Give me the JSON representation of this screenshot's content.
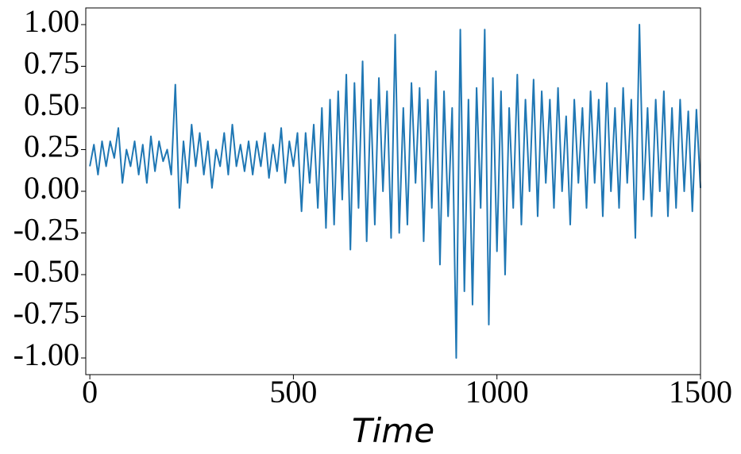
{
  "chart_data": {
    "type": "line",
    "x_label": "Time",
    "x": [
      0,
      10,
      20,
      30,
      40,
      50,
      60,
      70,
      80,
      90,
      100,
      110,
      120,
      130,
      140,
      150,
      160,
      170,
      180,
      190,
      200,
      210,
      220,
      230,
      240,
      250,
      260,
      270,
      280,
      290,
      300,
      310,
      320,
      330,
      340,
      350,
      360,
      370,
      380,
      390,
      400,
      410,
      420,
      430,
      440,
      450,
      460,
      470,
      480,
      490,
      500,
      510,
      520,
      530,
      540,
      550,
      560,
      570,
      580,
      590,
      600,
      610,
      620,
      630,
      640,
      650,
      660,
      670,
      680,
      690,
      700,
      710,
      720,
      730,
      740,
      750,
      760,
      770,
      780,
      790,
      800,
      810,
      820,
      830,
      840,
      850,
      860,
      870,
      880,
      890,
      900,
      910,
      920,
      930,
      940,
      950,
      960,
      970,
      980,
      990,
      1000,
      1010,
      1020,
      1030,
      1040,
      1050,
      1060,
      1070,
      1080,
      1090,
      1100,
      1110,
      1120,
      1130,
      1140,
      1150,
      1160,
      1170,
      1180,
      1190,
      1200,
      1210,
      1220,
      1230,
      1240,
      1250,
      1260,
      1270,
      1280,
      1290,
      1300,
      1310,
      1320,
      1330,
      1340,
      1350,
      1360,
      1370,
      1380,
      1390,
      1400,
      1410,
      1420,
      1430,
      1440,
      1450,
      1460,
      1470,
      1480,
      1490,
      1500
    ],
    "series": [
      {
        "color": "#1f77b4",
        "values": [
          0.15,
          0.28,
          0.1,
          0.3,
          0.15,
          0.3,
          0.2,
          0.38,
          0.05,
          0.25,
          0.15,
          0.3,
          0.1,
          0.28,
          0.05,
          0.33,
          0.12,
          0.3,
          0.18,
          0.25,
          0.1,
          0.64,
          -0.1,
          0.3,
          0.05,
          0.4,
          0.15,
          0.35,
          0.1,
          0.3,
          0.02,
          0.25,
          0.15,
          0.35,
          0.1,
          0.4,
          0.15,
          0.28,
          0.12,
          0.3,
          0.1,
          0.3,
          0.15,
          0.35,
          0.08,
          0.28,
          0.12,
          0.38,
          0.05,
          0.3,
          0.15,
          0.35,
          -0.12,
          0.35,
          0.05,
          0.4,
          -0.1,
          0.5,
          -0.22,
          0.55,
          -0.2,
          0.6,
          -0.05,
          0.7,
          -0.35,
          0.65,
          -0.1,
          0.78,
          -0.3,
          0.55,
          -0.2,
          0.68,
          0.0,
          0.6,
          -0.28,
          0.94,
          -0.25,
          0.5,
          -0.2,
          0.65,
          0.05,
          0.62,
          -0.3,
          0.55,
          -0.1,
          0.72,
          -0.44,
          0.6,
          -0.15,
          0.5,
          -1.0,
          0.97,
          -0.6,
          0.55,
          -0.68,
          0.62,
          -0.1,
          0.97,
          -0.8,
          0.68,
          -0.36,
          0.6,
          -0.5,
          0.5,
          -0.1,
          0.7,
          -0.2,
          0.55,
          0.0,
          0.67,
          -0.15,
          0.6,
          0.05,
          0.55,
          -0.1,
          0.62,
          0.0,
          0.45,
          -0.2,
          0.55,
          0.05,
          0.5,
          -0.1,
          0.6,
          0.05,
          0.55,
          -0.15,
          0.65,
          0.0,
          0.5,
          -0.1,
          0.62,
          0.05,
          0.55,
          -0.28,
          1.0,
          -0.05,
          0.5,
          -0.15,
          0.55,
          0.0,
          0.6,
          -0.15,
          0.5,
          -0.1,
          0.55,
          0.0,
          0.48,
          -0.12,
          0.49,
          0.02
        ]
      }
    ],
    "xlim": [
      -10,
      1500
    ],
    "xticks": [
      0,
      500,
      1000,
      1500
    ],
    "ylim": [
      -1.1,
      1.1
    ],
    "yticks": [
      {
        "value": -1,
        "label": "-1.00"
      },
      {
        "value": -0.75,
        "label": "-0.75"
      },
      {
        "value": -0.5,
        "label": "-0.50"
      },
      {
        "value": -0.25,
        "label": "-0.25"
      },
      {
        "value": 0,
        "label": "0.00"
      },
      {
        "value": 0.25,
        "label": "0.25"
      },
      {
        "value": 0.5,
        "label": "0.50"
      },
      {
        "value": 0.75,
        "label": "0.75"
      },
      {
        "value": 1,
        "label": "1.00"
      }
    ],
    "grid": false
  }
}
